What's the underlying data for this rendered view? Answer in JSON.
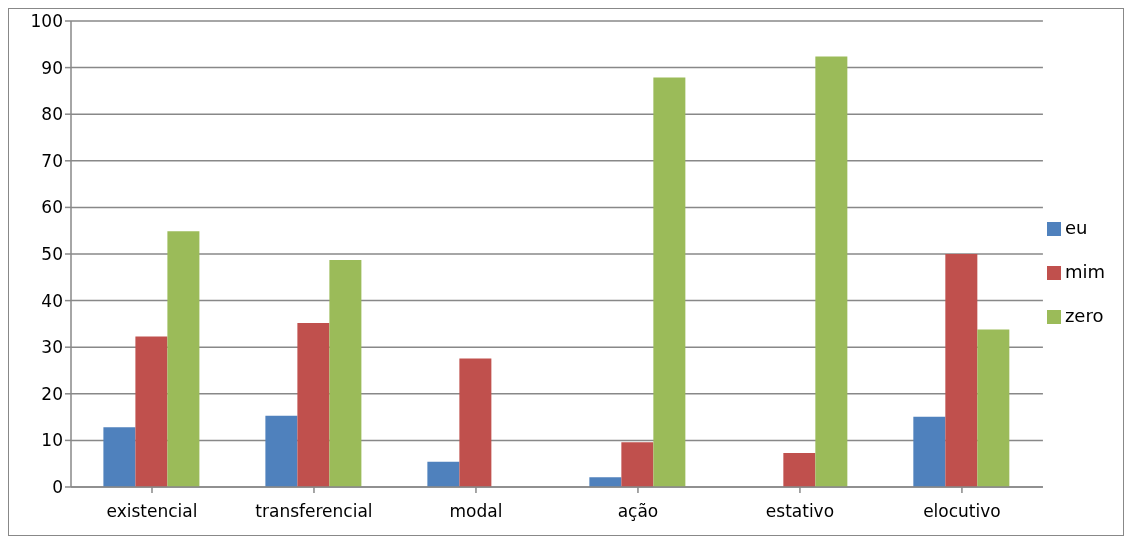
{
  "chart_data": {
    "type": "bar",
    "categories": [
      "existencial",
      "transferencial",
      "modal",
      "ação",
      "estativo",
      "elocutivo"
    ],
    "series": [
      {
        "name": "eu",
        "color": "#4f81bd",
        "values": [
          12.8,
          15.3,
          5.4,
          2.1,
          0,
          15.1
        ]
      },
      {
        "name": "mim",
        "color": "#c0504d",
        "values": [
          32.3,
          35.2,
          27.6,
          9.6,
          7.3,
          50.0
        ]
      },
      {
        "name": "zero",
        "color": "#9bbb59",
        "values": [
          54.9,
          48.7,
          0,
          87.9,
          92.4,
          33.8
        ]
      }
    ],
    "ylim": [
      0,
      100
    ],
    "yticks": [
      0,
      10,
      20,
      30,
      40,
      50,
      60,
      70,
      80,
      90,
      100
    ],
    "grid": "y",
    "legend": "right"
  }
}
